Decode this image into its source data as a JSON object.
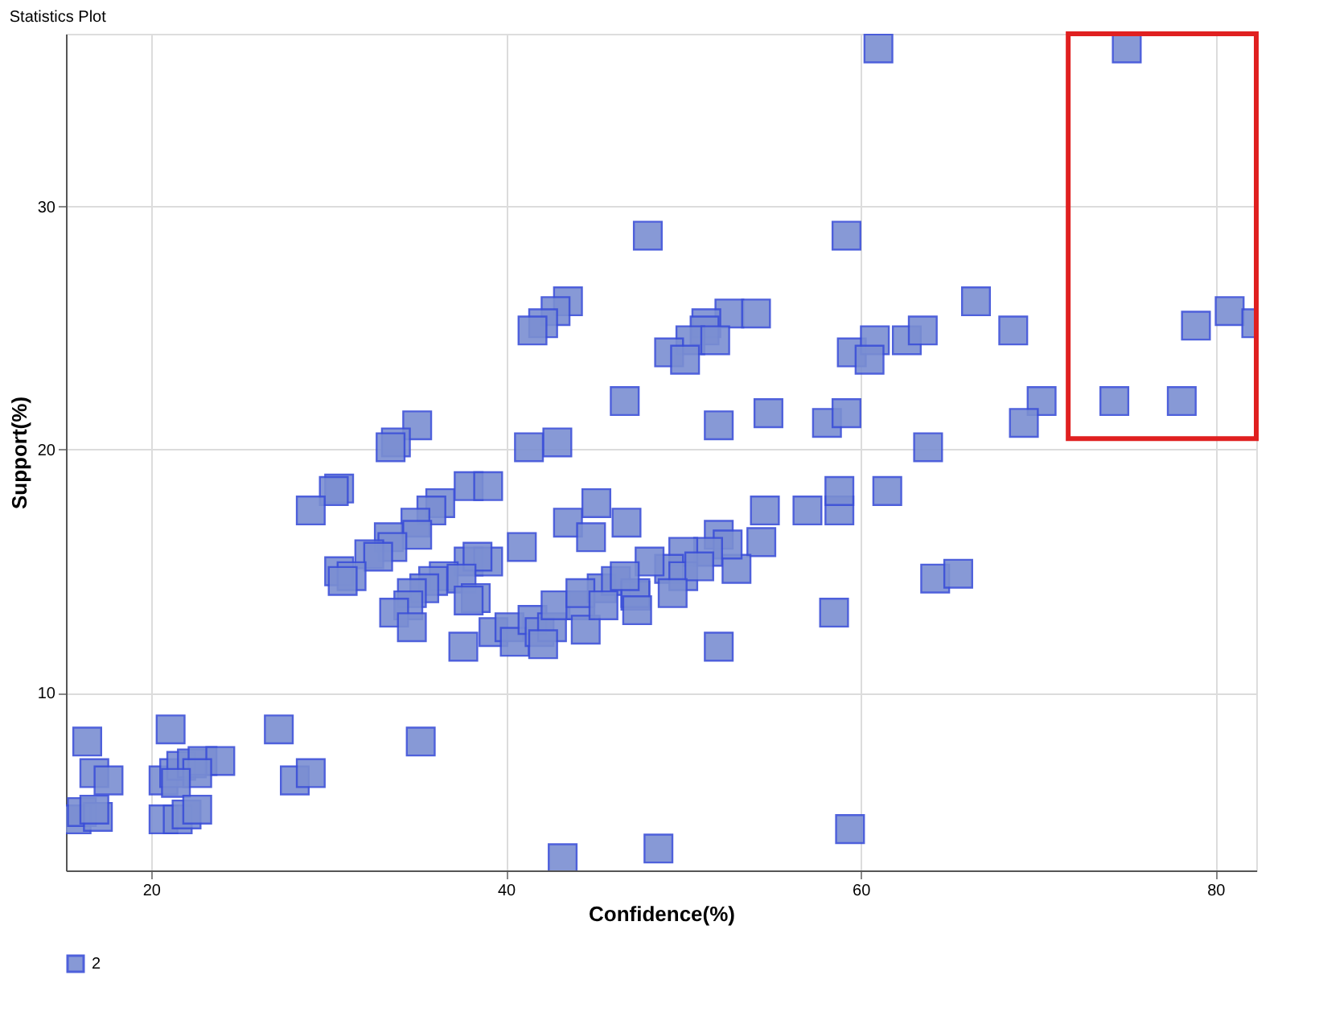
{
  "chart_data": {
    "type": "scatter",
    "title": "Statistics Plot",
    "xlabel": "Confidence(%)",
    "ylabel": "Support(%)",
    "xlim": [
      15.2,
      82.3
    ],
    "ylim": [
      2.7,
      37.1
    ],
    "xticks": [
      20,
      40,
      60,
      80
    ],
    "yticks": [
      10,
      20,
      30
    ],
    "grid": true,
    "legend": "bottom",
    "marker": "square",
    "series": [
      {
        "name": "2",
        "color": "#7b8fd2",
        "x": [
          16.4,
          15.8,
          16.1,
          16.8,
          17.6,
          17.0,
          16.8,
          21.1,
          27.2,
          20.7,
          21.3,
          21.7,
          22.3,
          22.9,
          23.9,
          22.6,
          21.4,
          20.7,
          21.5,
          22.0,
          22.6,
          28.1,
          29.0,
          46.7,
          35.0,
          33.8,
          33.5,
          41.3,
          42.9,
          30.6,
          30.3,
          29.0,
          37.9,
          39.0,
          36.3,
          35.8,
          34.9,
          35.0,
          33.4,
          33.6,
          32.3,
          32.8,
          30.6,
          31.3,
          30.8,
          40.9,
          43.5,
          45.1,
          44.8,
          46.8,
          37.9,
          39.0,
          38.4,
          36.5,
          35.9,
          37.5,
          35.4,
          34.7,
          34.5,
          33.7,
          38.3,
          37.9,
          34.7,
          37.6,
          39.3,
          40.2,
          40.5,
          41.5,
          41.9,
          42.6,
          42.1,
          42.8,
          44.2,
          44.5,
          45.4,
          46.2,
          47.3,
          54.6,
          57.0,
          58.8,
          58.8,
          54.4,
          53.0,
          52.0,
          52.5,
          51.4,
          50.0,
          49.2,
          48.1,
          50.0,
          50.9,
          49.4,
          47.3,
          46.7,
          44.2,
          45.5,
          47.4,
          58.5,
          52.0,
          48.0,
          59.2,
          43.5,
          42.8,
          42.1,
          41.5,
          52.6,
          54.1,
          51.3,
          51.2,
          50.4,
          51.8,
          49.2,
          50.1,
          59.5,
          60.8,
          60.5,
          62.6,
          63.5,
          52.0,
          54.8,
          58.1,
          59.2,
          63.8,
          61.0,
          75.0,
          66.5,
          68.6,
          78.9,
          80.8,
          82.3,
          70.2,
          69.2,
          74.3,
          78.1,
          61.5,
          64.2,
          65.5,
          43.2,
          48.6,
          59.4,
          35.2
        ],
        "values": [
          8.0,
          4.8,
          5.1,
          6.7,
          6.4,
          4.9,
          5.2,
          8.5,
          8.5,
          6.4,
          6.7,
          7.0,
          7.1,
          7.2,
          7.2,
          6.7,
          6.3,
          4.8,
          4.8,
          5.0,
          5.2,
          6.4,
          6.7,
          22.0,
          21.0,
          20.3,
          20.1,
          20.1,
          20.3,
          18.4,
          18.3,
          17.5,
          18.5,
          18.5,
          17.8,
          17.5,
          17.0,
          16.5,
          16.4,
          16.0,
          15.7,
          15.6,
          15.0,
          14.8,
          14.6,
          16.0,
          17.0,
          17.8,
          16.4,
          17.0,
          15.4,
          15.4,
          15.6,
          14.8,
          14.6,
          14.7,
          14.3,
          14.1,
          13.6,
          13.3,
          13.9,
          13.8,
          12.7,
          11.9,
          12.5,
          12.7,
          12.1,
          13.0,
          12.5,
          12.7,
          12.0,
          13.6,
          13.6,
          12.6,
          14.3,
          14.6,
          14.0,
          17.5,
          17.5,
          17.5,
          18.3,
          16.2,
          15.1,
          16.5,
          16.1,
          15.8,
          15.8,
          15.1,
          15.4,
          14.8,
          15.2,
          14.1,
          14.1,
          14.8,
          14.1,
          13.6,
          13.4,
          13.3,
          11.9,
          28.8,
          28.8,
          26.1,
          25.7,
          25.2,
          24.9,
          25.6,
          25.6,
          25.2,
          24.9,
          24.5,
          24.5,
          24.0,
          23.7,
          24.0,
          24.5,
          23.7,
          24.5,
          24.9,
          21.0,
          21.5,
          21.1,
          21.5,
          20.1,
          36.5,
          36.5,
          26.1,
          24.9,
          25.1,
          25.7,
          25.2,
          22.0,
          21.1,
          22.0,
          22.0,
          18.3,
          14.7,
          14.9,
          3.2,
          3.6,
          4.4,
          8.0
        ]
      }
    ]
  }
}
